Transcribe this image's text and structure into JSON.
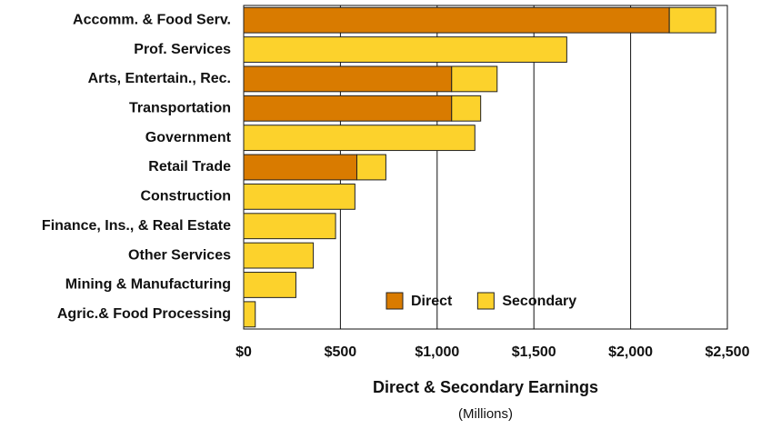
{
  "chart_data": {
    "type": "stacked-barh",
    "xlabel": "Direct & Secondary Earnings",
    "xlabel_note": "(Millions)",
    "categories": [
      "Accomm. & Food Serv.",
      "Prof. Services",
      "Arts, Entertain., Rec.",
      "Transportation",
      "Government",
      "Retail Trade",
      "Construction",
      "Finance, Ins., & Real Estate",
      "Other Services",
      "Mining & Manufacturing",
      "Agric.& Food Processing"
    ],
    "series": [
      {
        "name": "Direct",
        "color": "#d97b00",
        "values": [
          2200,
          null,
          1075,
          1075,
          null,
          585,
          null,
          null,
          null,
          null,
          null
        ]
      },
      {
        "name": "Secondary",
        "color": "#fcd22c",
        "values": [
          240,
          1670,
          235,
          150,
          1195,
          150,
          575,
          475,
          360,
          270,
          60
        ]
      }
    ],
    "xlim": [
      0,
      2500
    ],
    "xticks": [
      {
        "value": 0,
        "label": "$0"
      },
      {
        "value": 500,
        "label": "$500"
      },
      {
        "value": 1000,
        "label": "$1,000"
      },
      {
        "value": 1500,
        "label": "$1,500"
      },
      {
        "value": 2000,
        "label": "$2,000"
      },
      {
        "value": 2500,
        "label": "$2,500"
      }
    ],
    "grid": true,
    "legend": "lower center"
  }
}
